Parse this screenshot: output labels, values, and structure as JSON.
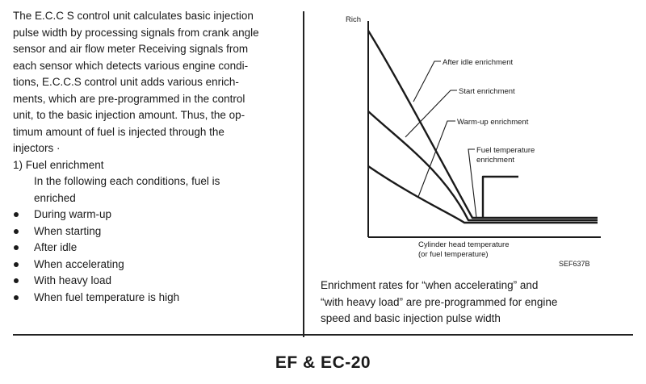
{
  "left_column": {
    "intro_lines": [
      "The E.C.C S control unit calculates basic injection",
      "pulse width by processing signals from crank angle",
      "sensor and air flow meter Receiving signals from",
      "each sensor which detects various engine condi-",
      "tions, E.C.C.S control unit adds various enrich-",
      "ments, which are pre-programmed in the control",
      "unit, to the basic injection amount. Thus, the op-",
      "timum amount of fuel is injected through the",
      "injectors ·"
    ],
    "section_heading": "1)  Fuel enrichment",
    "section_body_lines": [
      "In the following each conditions, fuel is",
      "enriched"
    ],
    "conditions": [
      "During warm-up",
      "When starting",
      "After idle",
      "When accelerating",
      "With heavy load",
      "When fuel temperature is high"
    ]
  },
  "figure": {
    "y_axis_label": "Rich",
    "x_axis_label_line1": "Cylinder head temperature",
    "x_axis_label_line2": "(or fuel temperature)",
    "figure_id": "SEF637B",
    "callouts": {
      "after_idle": "After idle enrichment",
      "start": "Start enrichment",
      "warm_up": "Warm-up enrichment",
      "fuel_temp_line1": "Fuel temperature",
      "fuel_temp_line2": "enrichment"
    }
  },
  "caption_lines": [
    "Enrichment rates for “when accelerating” and",
    "“with heavy load” are pre-programmed for engine",
    "speed and basic injection pulse width"
  ],
  "footer": "EF & EC-20"
}
